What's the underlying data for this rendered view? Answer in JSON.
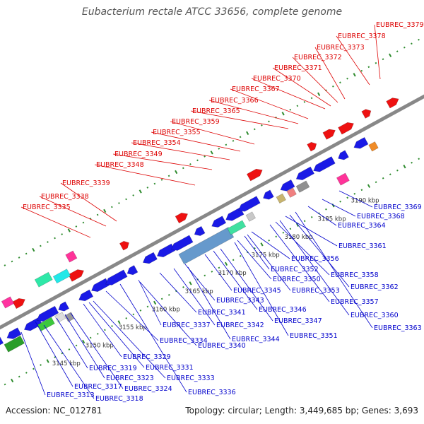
{
  "title": "Eubacterium rectale ATCC 33656, complete genome",
  "footer": {
    "accession": "Accession: NC_012781",
    "summary": "Topology: circular; Length: 3,449,685 bp; Genes: 3,693"
  },
  "colors": {
    "forward_label": "#dd0000",
    "reverse_label": "#0000cc",
    "backbone": "#888888",
    "tick_dot": "#2e8b2e"
  },
  "ruler": [
    "3145 kbp",
    "3150 kbp",
    "3155 kbp",
    "3160 kbp",
    "3165 kbp",
    "3170 kbp",
    "3175 kbp",
    "3180 kbp",
    "3185 kbp",
    "3190 kbp"
  ],
  "forward_genes": [
    "EUBREC_3335",
    "EUBREC_3338",
    "EUBREC_3339",
    "EUBREC_3348",
    "EUBREC_3349",
    "EUBREC_3354",
    "EUBREC_3355",
    "EUBREC_3359",
    "EUBREC_3365",
    "EUBREC_3366",
    "EUBREC_3367",
    "EUBREC_3370",
    "EUBREC_3371",
    "EUBREC_3372",
    "EUBREC_3373",
    "EUBREC_3378",
    "EUBREC_3379"
  ],
  "reverse_genes": [
    "EUBREC_3313",
    "EUBREC_3317",
    "EUBREC_3318",
    "EUBREC_3319",
    "EUBREC_3323",
    "EUBREC_3324",
    "EUBREC_3329",
    "EUBREC_3331",
    "EUBREC_3333",
    "EUBREC_3334",
    "EUBREC_3336",
    "EUBREC_3337",
    "EUBREC_3340",
    "EUBREC_3341",
    "EUBREC_3342",
    "EUBREC_3343",
    "EUBREC_3344",
    "EUBREC_3345",
    "EUBREC_3346",
    "EUBREC_3347",
    "EUBREC_3350",
    "EUBREC_3351",
    "EUBREC_3352",
    "EUBREC_3353",
    "EUBREC_3356",
    "EUBREC_3357",
    "EUBREC_3358",
    "EUBREC_3360",
    "EUBREC_3361",
    "EUBREC_3362",
    "EUBREC_3363",
    "EUBREC_3364",
    "EUBREC_3368",
    "EUBREC_3369"
  ]
}
